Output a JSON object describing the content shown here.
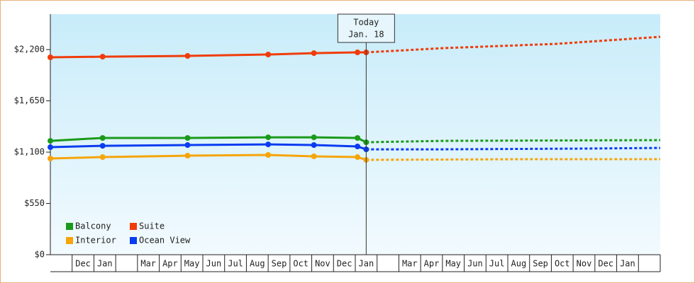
{
  "chart_data": {
    "type": "line",
    "categories": [
      null,
      "Dec",
      "Jan",
      null,
      "Mar",
      "Apr",
      "May",
      "Jun",
      "Jul",
      "Aug",
      "Sep",
      "Oct",
      "Nov",
      "Dec",
      "Jan",
      null,
      "Mar",
      "Apr",
      "May",
      "Jun",
      "Jul",
      "Aug",
      "Sep",
      "Oct",
      "Nov",
      "Dec",
      "Jan",
      null
    ],
    "xlim": [
      0,
      28
    ],
    "ylim": [
      0,
      2580
    ],
    "yticks": [
      {
        "value": 0,
        "label": "$0"
      },
      {
        "value": 550,
        "label": "$550"
      },
      {
        "value": 1100,
        "label": "$1,100"
      },
      {
        "value": 1650,
        "label": "$1,650"
      },
      {
        "value": 2200,
        "label": "$2,200"
      }
    ],
    "annotation": {
      "text": [
        "Today",
        "Jan. 18"
      ],
      "x": 14.5
    },
    "legend": "lower left",
    "series": [
      {
        "name": "Balcony",
        "color": "#1a9a1a",
        "x": [
          0,
          2.4,
          6.3,
          10,
          12.1,
          14.1,
          14.5
        ],
        "values": [
          1221,
          1252,
          1252,
          1259,
          1259,
          1252,
          1206
        ],
        "forecast_x": [
          14.5,
          18,
          28
        ],
        "forecast_values": [
          1206,
          1221,
          1229
        ]
      },
      {
        "name": "Suite",
        "color": "#f03c0a",
        "x": [
          0,
          2.4,
          6.3,
          10,
          12.1,
          14.1,
          14.5
        ],
        "values": [
          2117,
          2124,
          2132,
          2147,
          2162,
          2170,
          2170
        ],
        "forecast_x": [
          14.5,
          18,
          23.2,
          28
        ],
        "forecast_values": [
          2170,
          2215,
          2261,
          2337
        ]
      },
      {
        "name": "Interior",
        "color": "#f5a50a",
        "x": [
          0,
          2.4,
          6.3,
          10,
          12.1,
          14.1,
          14.5
        ],
        "values": [
          1032,
          1047,
          1062,
          1070,
          1055,
          1047,
          1017
        ],
        "forecast_x": [
          14.5,
          21.2,
          28
        ],
        "forecast_values": [
          1017,
          1024,
          1024
        ]
      },
      {
        "name": "Ocean View",
        "color": "#0a3cf0",
        "x": [
          0,
          2.4,
          6.3,
          10,
          12.1,
          14.1,
          14.5
        ],
        "values": [
          1153,
          1168,
          1176,
          1183,
          1176,
          1161,
          1130
        ],
        "forecast_x": [
          14.5,
          18,
          24.4,
          28
        ],
        "forecast_values": [
          1130,
          1130,
          1138,
          1145
        ]
      }
    ]
  }
}
